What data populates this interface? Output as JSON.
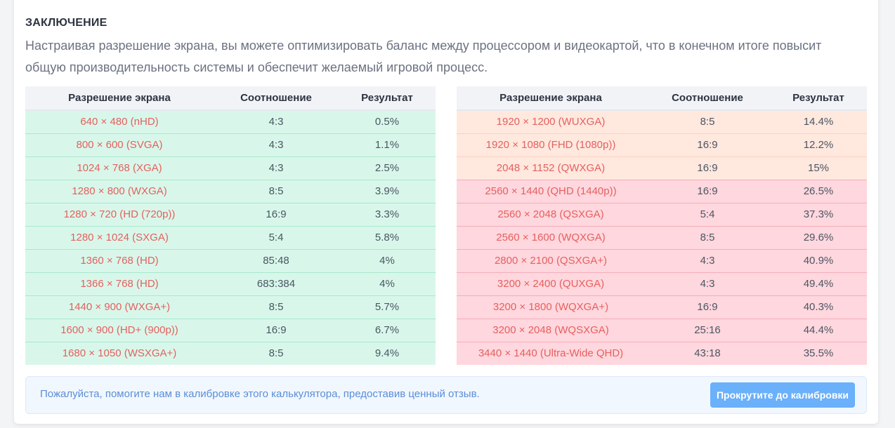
{
  "section": {
    "title": "ЗАКЛЮЧЕНИЕ",
    "text": "Настраивая разрешение экрана, вы можете оптимизировать баланс между процессором и видеокартой, что в конечном итоге повысит общую производительность системы и обеспечит желаемый игровой процесс."
  },
  "table_headers": {
    "resolution": "Разрешение экрана",
    "ratio": "Соотношение",
    "result": "Результат"
  },
  "left_table": {
    "rows": [
      {
        "resolution": "640 × 480 (nHD)",
        "ratio": "4:3",
        "result": "0.5%",
        "level": "green"
      },
      {
        "resolution": "800 × 600 (SVGA)",
        "ratio": "4:3",
        "result": "1.1%",
        "level": "green"
      },
      {
        "resolution": "1024 × 768 (XGA)",
        "ratio": "4:3",
        "result": "2.5%",
        "level": "green"
      },
      {
        "resolution": "1280 × 800 (WXGA)",
        "ratio": "8:5",
        "result": "3.9%",
        "level": "green"
      },
      {
        "resolution": "1280 × 720 (HD (720p))",
        "ratio": "16:9",
        "result": "3.3%",
        "level": "green"
      },
      {
        "resolution": "1280 × 1024 (SXGA)",
        "ratio": "5:4",
        "result": "5.8%",
        "level": "green"
      },
      {
        "resolution": "1360 × 768 (HD)",
        "ratio": "85:48",
        "result": "4%",
        "level": "green"
      },
      {
        "resolution": "1366 × 768 (HD)",
        "ratio": "683:384",
        "result": "4%",
        "level": "green"
      },
      {
        "resolution": "1440 × 900 (WXGA+)",
        "ratio": "8:5",
        "result": "5.7%",
        "level": "green"
      },
      {
        "resolution": "1600 × 900 (HD+ (900p))",
        "ratio": "16:9",
        "result": "6.7%",
        "level": "green"
      },
      {
        "resolution": "1680 × 1050 (WSXGA+)",
        "ratio": "8:5",
        "result": "9.4%",
        "level": "green"
      }
    ]
  },
  "right_table": {
    "rows": [
      {
        "resolution": "1920 × 1200 (WUXGA)",
        "ratio": "8:5",
        "result": "14.4%",
        "level": "orange"
      },
      {
        "resolution": "1920 × 1080 (FHD (1080p))",
        "ratio": "16:9",
        "result": "12.2%",
        "level": "orange"
      },
      {
        "resolution": "2048 × 1152 (QWXGA)",
        "ratio": "16:9",
        "result": "15%",
        "level": "orange"
      },
      {
        "resolution": "2560 × 1440 (QHD (1440p))",
        "ratio": "16:9",
        "result": "26.5%",
        "level": "pink"
      },
      {
        "resolution": "2560 × 2048 (QSXGA)",
        "ratio": "5:4",
        "result": "37.3%",
        "level": "pink"
      },
      {
        "resolution": "2560 × 1600 (WQXGA)",
        "ratio": "8:5",
        "result": "29.6%",
        "level": "pink"
      },
      {
        "resolution": "2800 × 2100 (QSXGA+)",
        "ratio": "4:3",
        "result": "40.9%",
        "level": "pink"
      },
      {
        "resolution": "3200 × 2400 (QUXGA)",
        "ratio": "4:3",
        "result": "49.4%",
        "level": "pink"
      },
      {
        "resolution": "3200 × 1800 (WQXGA+)",
        "ratio": "16:9",
        "result": "40.3%",
        "level": "pink"
      },
      {
        "resolution": "3200 × 2048 (WQSXGA)",
        "ratio": "25:16",
        "result": "44.4%",
        "level": "pink"
      },
      {
        "resolution": "3440 × 1440 (Ultra-Wide QHD)",
        "ratio": "43:18",
        "result": "35.5%",
        "level": "pink"
      }
    ]
  },
  "colors": {
    "green_row": "#d8f7ea",
    "orange_row": "#ffe8de",
    "pink_row": "#ffd7de",
    "resolution_text": "#e5605f",
    "button": "#6ab0fa"
  },
  "feedback": {
    "text": "Пожалуйста, помогите нам в калибровке этого калькулятора, предоставив ценный отзыв.",
    "button_label": "Прокрутите до калибровки"
  }
}
